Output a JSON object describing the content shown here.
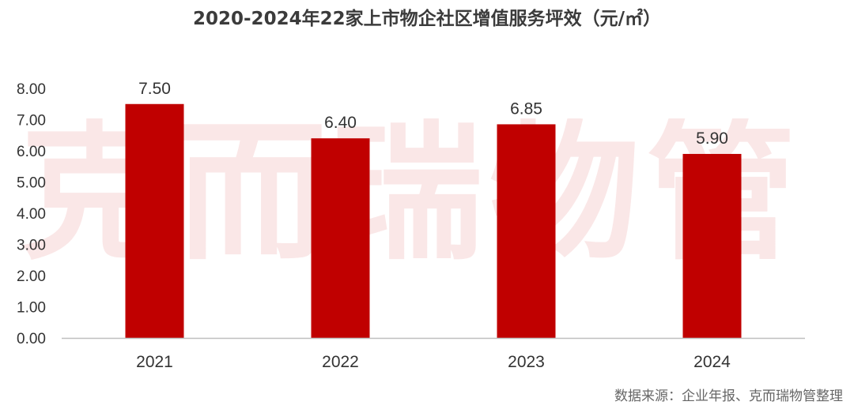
{
  "title": "2020-2024年22家上市物企社区增值服务坪效（元/㎡）",
  "watermark": "克而瑞物管",
  "source": "数据来源：企业年报、克而瑞物管整理",
  "colors": {
    "bar": "#c00000",
    "axis": "#bfbfbf",
    "text": "#333333"
  },
  "chart_data": {
    "type": "bar",
    "title": "2020-2024年22家上市物企社区增值服务坪效（元/㎡）",
    "categories": [
      "2021",
      "2022",
      "2023",
      "2024"
    ],
    "values": [
      7.5,
      6.4,
      6.85,
      5.9
    ],
    "value_labels": [
      "7.50",
      "6.40",
      "6.85",
      "5.90"
    ],
    "y_ticks": [
      "0.00",
      "1.00",
      "2.00",
      "3.00",
      "4.00",
      "5.00",
      "6.00",
      "7.00",
      "8.00"
    ],
    "ylim": [
      0,
      8
    ],
    "xlabel": "",
    "ylabel": "",
    "grid": false,
    "legend": "none"
  }
}
